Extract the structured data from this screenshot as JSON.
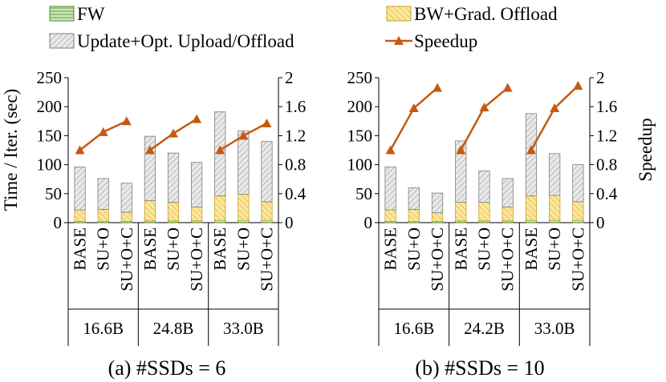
{
  "legend": {
    "fw": "FW",
    "bw": "BW+Grad. Offload",
    "update": "Update+Opt. Upload/Offload",
    "speedup": "Speedup"
  },
  "colors": {
    "fw_fill": "#c8e6b4",
    "fw_stroke": "#4f8a2f",
    "bw_fill": "#fce79a",
    "bw_stroke": "#c9a02e",
    "update_fill": "#e6e6e6",
    "update_stroke": "#7f7f7f",
    "line": "#c55a11"
  },
  "chart_data": [
    {
      "type": "bar",
      "stacked": true,
      "caption": "(a) #SSDs = 6",
      "ylabel": "Time / Iter. (sec)",
      "y2label": "Speedup",
      "ylim": [
        0,
        250
      ],
      "yticks": [
        0,
        50,
        100,
        150,
        200,
        250
      ],
      "y2lim": [
        0,
        2
      ],
      "y2ticks": [
        "0",
        "0.4",
        "0.8",
        "1.2",
        "1.6",
        "2"
      ],
      "groups": [
        {
          "label": "16.6B",
          "categories": [
            "BASE",
            "SU+O",
            "SU+O+C"
          ],
          "fw": [
            2,
            2,
            2
          ],
          "bw": [
            20,
            21,
            16
          ],
          "total": [
            96,
            76,
            68
          ],
          "speedup": [
            1.0,
            1.25,
            1.4
          ]
        },
        {
          "label": "24.8B",
          "categories": [
            "BASE",
            "SU+O",
            "SU+O+C"
          ],
          "fw": [
            3,
            3,
            3
          ],
          "bw": [
            35,
            32,
            24
          ],
          "total": [
            149,
            120,
            104
          ],
          "speedup": [
            1.0,
            1.23,
            1.43
          ]
        },
        {
          "label": "33.0B",
          "categories": [
            "BASE",
            "SU+O",
            "SU+O+C"
          ],
          "fw": [
            4,
            4,
            4
          ],
          "bw": [
            42,
            45,
            32
          ],
          "total": [
            191,
            158,
            140
          ],
          "speedup": [
            1.0,
            1.2,
            1.37
          ]
        }
      ]
    },
    {
      "type": "bar",
      "stacked": true,
      "caption": "(b) #SSDs = 10",
      "ylabel": "Time / Iter. (sec)",
      "y2label": "Speedup",
      "ylim": [
        0,
        250
      ],
      "yticks": [
        0,
        50,
        100,
        150,
        200,
        250
      ],
      "y2lim": [
        0,
        2
      ],
      "y2ticks": [
        "0",
        "0.4",
        "0.8",
        "1.2",
        "1.6",
        "2"
      ],
      "groups": [
        {
          "label": "16.6B",
          "categories": [
            "BASE",
            "SU+O",
            "SU+O+C"
          ],
          "fw": [
            2,
            2,
            2
          ],
          "bw": [
            20,
            21,
            15
          ],
          "total": [
            96,
            60,
            51
          ],
          "speedup": [
            1.0,
            1.58,
            1.86
          ]
        },
        {
          "label": "24.2B",
          "categories": [
            "BASE",
            "SU+O",
            "SU+O+C"
          ],
          "fw": [
            3,
            3,
            3
          ],
          "bw": [
            32,
            32,
            24
          ],
          "total": [
            141,
            89,
            76
          ],
          "speedup": [
            1.0,
            1.59,
            1.86
          ]
        },
        {
          "label": "33.0B",
          "categories": [
            "BASE",
            "SU+O",
            "SU+O+C"
          ],
          "fw": [
            4,
            4,
            4
          ],
          "bw": [
            42,
            43,
            32
          ],
          "total": [
            188,
            119,
            100
          ],
          "speedup": [
            1.0,
            1.58,
            1.89
          ]
        }
      ]
    }
  ]
}
